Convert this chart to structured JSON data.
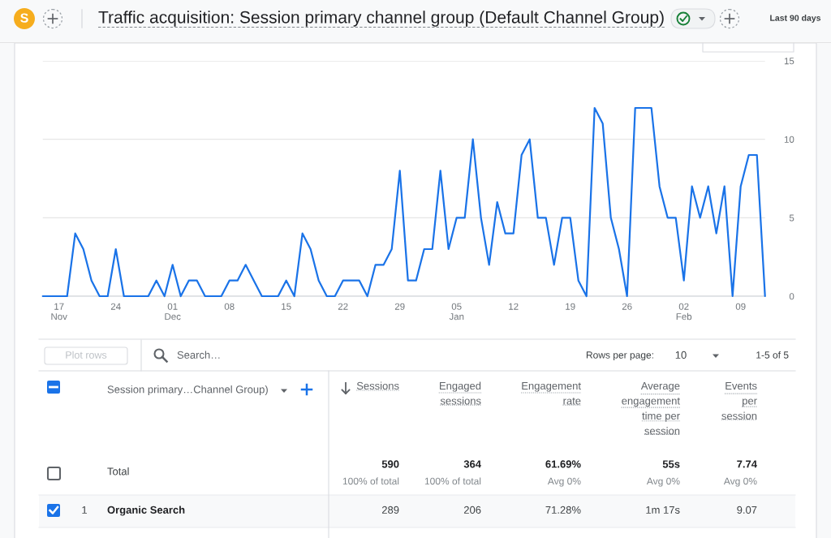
{
  "chart_data": [
    {
      "type": "line",
      "title": "Traffic acquisition: Session primary channel group (Default Channel Group)",
      "subtitle": "Last 90 days",
      "annotations": [
        "S"
      ],
      "categories": [
        null,
        null,
        "17\nNov",
        null,
        null,
        null,
        null,
        null,
        null,
        "24",
        null,
        null,
        null,
        null,
        null,
        null,
        "01\nDec",
        null,
        null,
        null,
        null,
        null,
        null,
        "08",
        null,
        null,
        null,
        null,
        null,
        null,
        "15",
        null,
        null,
        null,
        null,
        null,
        null,
        "22",
        null,
        null,
        null,
        null,
        null,
        null,
        "29",
        null,
        null,
        null,
        null,
        null,
        null,
        "05\nJan",
        null,
        null,
        null,
        null,
        null,
        null,
        "12",
        null,
        null,
        null,
        null,
        null,
        null,
        "19",
        null,
        null,
        null,
        null,
        null,
        null,
        "26",
        null,
        null,
        null,
        null,
        null,
        null,
        "02\nFeb",
        null,
        null,
        null,
        null,
        null,
        null,
        "09",
        null,
        null,
        null
      ],
      "series": [
        {
          "color": "#1a73e8",
          "values": [
            0,
            0,
            0,
            0,
            4,
            3,
            1,
            0,
            0,
            3,
            0,
            0,
            0,
            0,
            1,
            0,
            2,
            0,
            1,
            1,
            0,
            0,
            0,
            1,
            1,
            2,
            1,
            0,
            0,
            0,
            1,
            0,
            4,
            3,
            1,
            0,
            0,
            1,
            1,
            1,
            0,
            2,
            2,
            3,
            8,
            1,
            1,
            3,
            3,
            8,
            3,
            5,
            5,
            10,
            5,
            2,
            6,
            4,
            4,
            9,
            10,
            5,
            5,
            2,
            5,
            5,
            1,
            0,
            12,
            11,
            5,
            3,
            0,
            12,
            12,
            12,
            7,
            5,
            5,
            1,
            7,
            5,
            7,
            4,
            7,
            0,
            7,
            9,
            9,
            0
          ]
        }
      ],
      "ylim": [
        0,
        15
      ],
      "yticks": [
        0,
        5,
        10,
        15
      ],
      "grid": "y"
    },
    {
      "type": "other",
      "annotations": [
        "Plot rows",
        "Search…",
        "Rows per page:",
        "10",
        "1-5 of 5",
        "Session primary…Channel Group)",
        "Sessions",
        "Engaged\nsessions",
        "Engagement\nrate",
        "Average\nengagement\ntime per\nsession",
        "Events\nper\nsession",
        "Total",
        "590",
        "100% of total",
        "364",
        "100% of total",
        "61.69%",
        "Avg 0%",
        "55s",
        "Avg 0%",
        "7.74",
        "Avg 0%",
        "1",
        "Organic Search",
        "289",
        "206",
        "71.28%",
        "1m 17s",
        "9.07"
      ]
    }
  ]
}
